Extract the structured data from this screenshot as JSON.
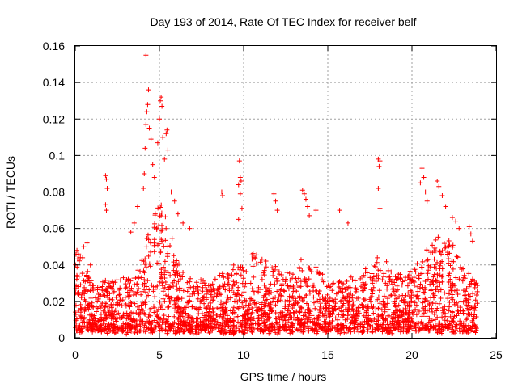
{
  "chart_data": {
    "type": "scatter",
    "title": "Day 193 of 2014, Rate Of TEC Index for receiver belf",
    "xlabel": "GPS time / hours",
    "ylabel": "ROTI / TECUs",
    "xlim": [
      0,
      25
    ],
    "ylim": [
      0,
      0.16
    ],
    "xticks": [
      0,
      5,
      10,
      15,
      20,
      25
    ],
    "xtick_labels": [
      "0",
      "5",
      "10",
      "15",
      "20",
      "25"
    ],
    "yticks": [
      0,
      0.02,
      0.04,
      0.06,
      0.08,
      0.1,
      0.12,
      0.14,
      0.16
    ],
    "ytick_labels": [
      "0",
      "0.02",
      "0.04",
      "0.06",
      "0.08",
      "0.1",
      "0.12",
      "0.14",
      "0.16"
    ],
    "grid": true,
    "marker": "+",
    "color": "#ff0000",
    "x_data_range": [
      0,
      23.9
    ],
    "series": [
      {
        "name": "ROTI",
        "points": [
          [
            0.1,
            0.048
          ],
          [
            0.2,
            0.046
          ],
          [
            0.3,
            0.044
          ],
          [
            0.5,
            0.05
          ],
          [
            0.7,
            0.052
          ],
          [
            0.9,
            0.04
          ],
          [
            1.8,
            0.089
          ],
          [
            1.85,
            0.087
          ],
          [
            1.9,
            0.082
          ],
          [
            1.8,
            0.073
          ],
          [
            1.85,
            0.07
          ],
          [
            3.3,
            0.058
          ],
          [
            3.5,
            0.063
          ],
          [
            3.7,
            0.072
          ],
          [
            4.05,
            0.082
          ],
          [
            4.1,
            0.09
          ],
          [
            4.15,
            0.104
          ],
          [
            4.2,
            0.117
          ],
          [
            4.25,
            0.124
          ],
          [
            4.3,
            0.128
          ],
          [
            4.35,
            0.136
          ],
          [
            4.2,
            0.155
          ],
          [
            4.4,
            0.115
          ],
          [
            4.5,
            0.109
          ],
          [
            4.6,
            0.095
          ],
          [
            4.7,
            0.088
          ],
          [
            4.9,
            0.107
          ],
          [
            5.0,
            0.12
          ],
          [
            5.05,
            0.13
          ],
          [
            5.1,
            0.132
          ],
          [
            5.15,
            0.127
          ],
          [
            5.2,
            0.11
          ],
          [
            5.3,
            0.098
          ],
          [
            5.4,
            0.112
          ],
          [
            5.45,
            0.114
          ],
          [
            5.5,
            0.103
          ],
          [
            5.7,
            0.08
          ],
          [
            5.9,
            0.075
          ],
          [
            6.1,
            0.068
          ],
          [
            6.4,
            0.063
          ],
          [
            6.8,
            0.06
          ],
          [
            8.7,
            0.08
          ],
          [
            8.75,
            0.078
          ],
          [
            9.75,
            0.097
          ],
          [
            9.8,
            0.088
          ],
          [
            9.85,
            0.086
          ],
          [
            9.7,
            0.084
          ],
          [
            9.8,
            0.079
          ],
          [
            9.9,
            0.071
          ],
          [
            9.7,
            0.065
          ],
          [
            11.8,
            0.079
          ],
          [
            11.9,
            0.075
          ],
          [
            12.0,
            0.07
          ],
          [
            13.5,
            0.081
          ],
          [
            13.6,
            0.079
          ],
          [
            13.7,
            0.076
          ],
          [
            13.8,
            0.072
          ],
          [
            13.9,
            0.067
          ],
          [
            14.3,
            0.07
          ],
          [
            15.7,
            0.07
          ],
          [
            16.2,
            0.063
          ],
          [
            18.0,
            0.098
          ],
          [
            18.05,
            0.094
          ],
          [
            18.1,
            0.097
          ],
          [
            18.0,
            0.082
          ],
          [
            18.1,
            0.071
          ],
          [
            20.6,
            0.093
          ],
          [
            20.7,
            0.088
          ],
          [
            20.5,
            0.085
          ],
          [
            20.8,
            0.08
          ],
          [
            20.9,
            0.075
          ],
          [
            21.5,
            0.086
          ],
          [
            21.6,
            0.083
          ],
          [
            21.8,
            0.078
          ],
          [
            22.0,
            0.072
          ],
          [
            22.4,
            0.066
          ],
          [
            22.6,
            0.064
          ],
          [
            22.8,
            0.06
          ],
          [
            23.4,
            0.061
          ],
          [
            23.5,
            0.057
          ],
          [
            23.6,
            0.053
          ]
        ]
      }
    ]
  }
}
